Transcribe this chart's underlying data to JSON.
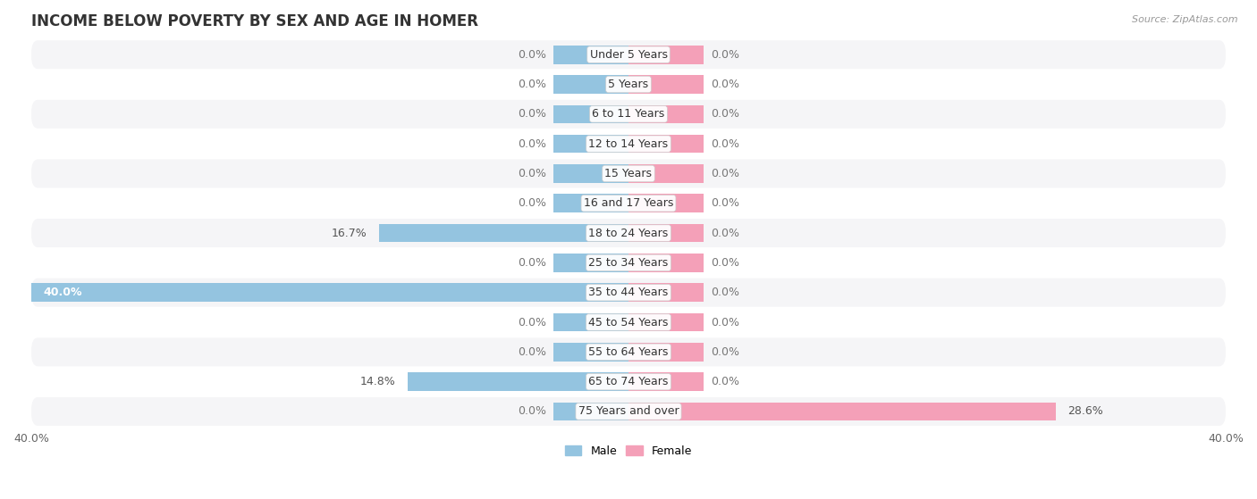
{
  "title": "INCOME BELOW POVERTY BY SEX AND AGE IN HOMER",
  "source": "Source: ZipAtlas.com",
  "categories": [
    "Under 5 Years",
    "5 Years",
    "6 to 11 Years",
    "12 to 14 Years",
    "15 Years",
    "16 and 17 Years",
    "18 to 24 Years",
    "25 to 34 Years",
    "35 to 44 Years",
    "45 to 54 Years",
    "55 to 64 Years",
    "65 to 74 Years",
    "75 Years and over"
  ],
  "male_values": [
    0.0,
    0.0,
    0.0,
    0.0,
    0.0,
    0.0,
    16.7,
    0.0,
    40.0,
    0.0,
    0.0,
    14.8,
    0.0
  ],
  "female_values": [
    0.0,
    0.0,
    0.0,
    0.0,
    0.0,
    0.0,
    0.0,
    0.0,
    0.0,
    0.0,
    0.0,
    0.0,
    28.6
  ],
  "male_color": "#94c4e0",
  "female_color": "#f4a0b8",
  "row_bg_light": "#f5f5f7",
  "row_bg_white": "#ffffff",
  "axis_max": 40.0,
  "stub_size": 5.0,
  "title_fontsize": 12,
  "label_fontsize": 9,
  "value_fontsize": 9,
  "tick_fontsize": 9,
  "source_fontsize": 8
}
